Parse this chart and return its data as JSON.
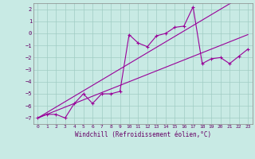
{
  "xlabel": "Windchill (Refroidissement éolien,°C)",
  "background_color": "#c8eae4",
  "grid_color": "#a0ccc4",
  "line_color": "#990099",
  "x_line": [
    0,
    1,
    2,
    3,
    4,
    5,
    6,
    7,
    8,
    9,
    10,
    11,
    12,
    13,
    14,
    15,
    16,
    17,
    18,
    19,
    20,
    21,
    22,
    23
  ],
  "y_scatter": [
    -7.0,
    -6.7,
    -6.7,
    -7.0,
    -5.8,
    -5.0,
    -5.8,
    -5.0,
    -5.0,
    -4.8,
    -0.1,
    -0.8,
    -1.1,
    -0.2,
    0.0,
    0.5,
    0.6,
    2.2,
    -2.5,
    -2.1,
    -2.0,
    -2.5,
    -1.9,
    -1.3
  ],
  "y_line1": [
    -7.0,
    -6.55,
    -6.1,
    -5.65,
    -5.2,
    -4.75,
    -4.3,
    -3.85,
    -3.4,
    -2.95,
    -2.5,
    -2.05,
    -1.6,
    -1.15,
    -0.7,
    -0.25,
    0.2,
    0.65,
    1.1,
    1.55,
    2.0,
    2.45,
    2.9,
    3.35
  ],
  "y_line2": [
    -7.0,
    -6.7,
    -6.4,
    -6.1,
    -5.8,
    -5.5,
    -5.2,
    -4.9,
    -4.6,
    -4.3,
    -4.0,
    -3.7,
    -3.4,
    -3.1,
    -2.8,
    -2.5,
    -2.2,
    -1.9,
    -1.6,
    -1.3,
    -1.0,
    -0.7,
    -0.4,
    -0.1
  ],
  "ylim": [
    -7.5,
    2.5
  ],
  "xlim": [
    -0.5,
    23.5
  ],
  "yticks": [
    -7,
    -6,
    -5,
    -4,
    -3,
    -2,
    -1,
    0,
    1,
    2
  ],
  "xticks": [
    0,
    1,
    2,
    3,
    4,
    5,
    6,
    7,
    8,
    9,
    10,
    11,
    12,
    13,
    14,
    15,
    16,
    17,
    18,
    19,
    20,
    21,
    22,
    23
  ]
}
